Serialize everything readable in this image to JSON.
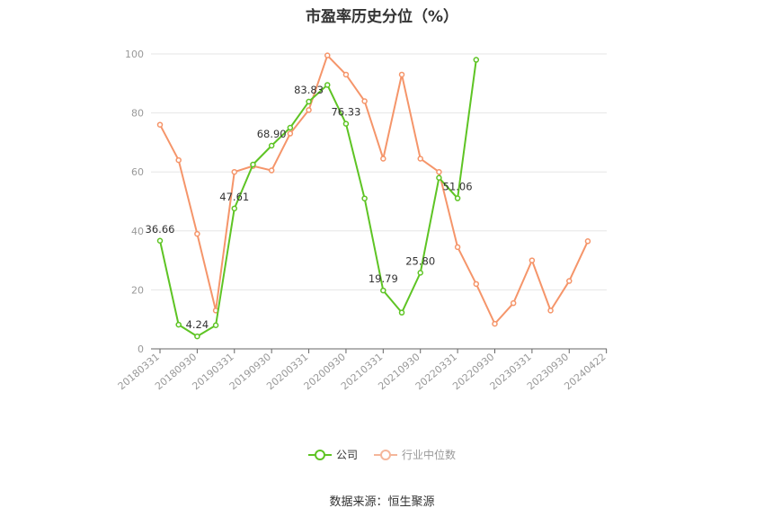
{
  "chart_data": {
    "type": "line",
    "title": "市盈率历史分位（%）",
    "x": [
      "20180331",
      "20180630",
      "20180930",
      "20181231",
      "20190331",
      "20190630",
      "20190930",
      "20191231",
      "20200331",
      "20200630",
      "20200930",
      "20201231",
      "20210331",
      "20210630",
      "20210930",
      "20211231",
      "20220331",
      "20220630",
      "20220930",
      "20221231",
      "20230331",
      "20230630",
      "20230930",
      "20231231",
      "20240422"
    ],
    "x_tick_labels": [
      "20180331",
      "20180930",
      "20190331",
      "20190930",
      "20200331",
      "20200930",
      "20210331",
      "20210930",
      "20220331",
      "20220930",
      "20230331",
      "20230930",
      "20240422"
    ],
    "ylim": [
      0,
      100
    ],
    "yticks": [
      0,
      20,
      40,
      60,
      80,
      100
    ],
    "grid": true,
    "legend_position": "bottom",
    "series": [
      {
        "name": "公司",
        "color": "#5ec424",
        "values": [
          36.66,
          8.2,
          4.24,
          8.0,
          47.61,
          62.5,
          68.9,
          75.0,
          83.83,
          89.5,
          76.33,
          51.0,
          19.79,
          12.3,
          25.8,
          58.0,
          51.06,
          98.0,
          null,
          null,
          null,
          null,
          null,
          null,
          null
        ],
        "labels": [
          {
            "index": 0,
            "text": "36.66"
          },
          {
            "index": 2,
            "text": "4.24"
          },
          {
            "index": 4,
            "text": "47.61"
          },
          {
            "index": 6,
            "text": "68.90"
          },
          {
            "index": 8,
            "text": "83.83"
          },
          {
            "index": 10,
            "text": "76.33"
          },
          {
            "index": 12,
            "text": "19.79"
          },
          {
            "index": 14,
            "text": "25.80"
          },
          {
            "index": 16,
            "text": "51.06"
          }
        ]
      },
      {
        "name": "行业中位数",
        "color": "#f5956a",
        "values": [
          76.0,
          64.0,
          39.0,
          13.0,
          60.0,
          62.0,
          60.5,
          73.0,
          81.0,
          99.5,
          93.0,
          84.0,
          64.5,
          93.0,
          64.5,
          60.0,
          34.5,
          22.0,
          8.5,
          15.5,
          30.0,
          13.0,
          23.0,
          36.5,
          null
        ]
      }
    ]
  },
  "legend": {
    "company_label": "公司",
    "industry_label": "行业中位数"
  },
  "source_note": "数据来源：恒生聚源"
}
